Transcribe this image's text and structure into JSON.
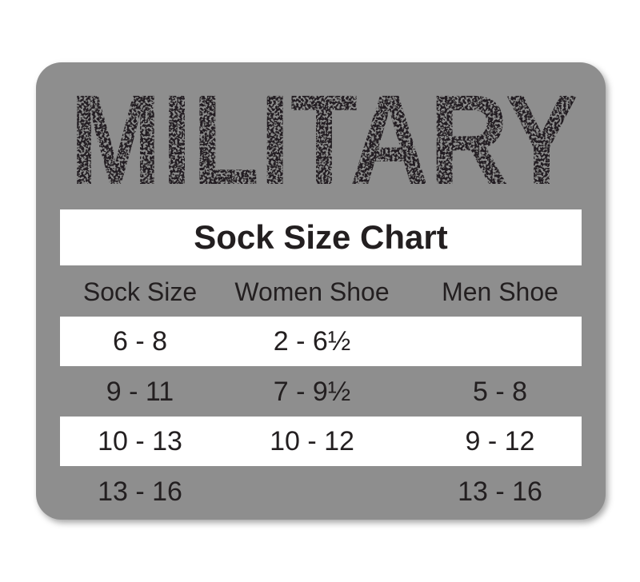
{
  "brand": {
    "logo_text": "MILITARY"
  },
  "title": "Sock Size Chart",
  "headers": [
    "Sock Size",
    "Women Shoe",
    "Men Shoe"
  ],
  "rows": [
    [
      "6 - 8",
      "2 - 6½",
      ""
    ],
    [
      "9 - 11",
      "7 - 9½",
      "5 - 8"
    ],
    [
      "10 - 13",
      "10 - 12",
      "9 - 12"
    ],
    [
      "13 - 16",
      "",
      "13 - 16"
    ]
  ],
  "colors": {
    "card": "#8e8e8e",
    "text": "#231f20",
    "band": "#ffffff"
  }
}
